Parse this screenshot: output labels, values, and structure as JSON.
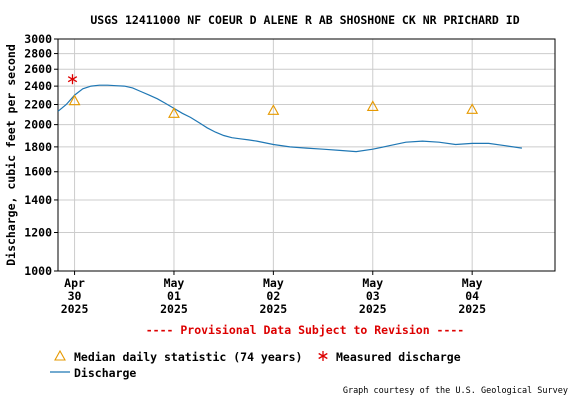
{
  "chart_data": {
    "type": "line",
    "title": "USGS 12411000 NF COEUR D ALENE R AB SHOSHONE CK NR PRICHARD ID",
    "ylabel": "Discharge, cubic feet per second",
    "xlabel": "",
    "y_scale": "log",
    "ylim": [
      1000,
      3000
    ],
    "y_ticks": [
      1000,
      1200,
      1400,
      1600,
      1800,
      2000,
      2200,
      2400,
      2600,
      2800,
      3000
    ],
    "x_range": [
      "2025-04-29T20:00",
      "2025-05-04T20:00"
    ],
    "x_ticks": [
      {
        "x": "2025-04-30T00:00",
        "label": [
          "Apr",
          "30",
          "2025"
        ]
      },
      {
        "x": "2025-05-01T00:00",
        "label": [
          "May",
          "01",
          "2025"
        ]
      },
      {
        "x": "2025-05-02T00:00",
        "label": [
          "May",
          "02",
          "2025"
        ]
      },
      {
        "x": "2025-05-03T00:00",
        "label": [
          "May",
          "03",
          "2025"
        ]
      },
      {
        "x": "2025-05-04T00:00",
        "label": [
          "May",
          "04",
          "2025"
        ]
      }
    ],
    "grid": true,
    "provisional_notice": "---- Provisional Data Subject to Revision ----",
    "credit": "Graph courtesy of the U.S. Geological Survey",
    "colors": {
      "discharge": "#1f77b4",
      "median": "#e69900",
      "measured": "#dd0000",
      "notice": "#dd0000",
      "grid": "#cccccc"
    },
    "series": [
      {
        "name": "Discharge",
        "style": "line",
        "x": [
          "2025-04-29T20:00",
          "2025-04-29T22:00",
          "2025-04-30T00:00",
          "2025-04-30T02:00",
          "2025-04-30T04:00",
          "2025-04-30T06:00",
          "2025-04-30T08:00",
          "2025-04-30T10:00",
          "2025-04-30T12:00",
          "2025-04-30T14:00",
          "2025-04-30T16:00",
          "2025-04-30T18:00",
          "2025-04-30T20:00",
          "2025-04-30T22:00",
          "2025-05-01T00:00",
          "2025-05-01T02:00",
          "2025-05-01T04:00",
          "2025-05-01T06:00",
          "2025-05-01T08:00",
          "2025-05-01T10:00",
          "2025-05-01T12:00",
          "2025-05-01T14:00",
          "2025-05-01T16:00",
          "2025-05-01T18:00",
          "2025-05-01T20:00",
          "2025-05-02T00:00",
          "2025-05-02T04:00",
          "2025-05-02T08:00",
          "2025-05-02T12:00",
          "2025-05-02T16:00",
          "2025-05-02T20:00",
          "2025-05-03T00:00",
          "2025-05-03T04:00",
          "2025-05-03T08:00",
          "2025-05-03T12:00",
          "2025-05-03T16:00",
          "2025-05-03T20:00",
          "2025-05-04T00:00",
          "2025-05-04T04:00",
          "2025-05-04T08:00",
          "2025-05-04T12:00"
        ],
        "y": [
          2130,
          2200,
          2300,
          2370,
          2400,
          2410,
          2410,
          2405,
          2400,
          2380,
          2340,
          2300,
          2260,
          2210,
          2160,
          2110,
          2070,
          2020,
          1970,
          1930,
          1900,
          1880,
          1870,
          1860,
          1850,
          1820,
          1800,
          1790,
          1780,
          1770,
          1760,
          1780,
          1810,
          1840,
          1850,
          1840,
          1820,
          1830,
          1830,
          1810,
          1790
        ]
      },
      {
        "name": "Median daily statistic (74 years)",
        "style": "triangle",
        "x": [
          "2025-04-30T00:00",
          "2025-05-01T00:00",
          "2025-05-02T00:00",
          "2025-05-03T00:00",
          "2025-05-04T00:00"
        ],
        "y": [
          2240,
          2110,
          2140,
          2180,
          2150
        ]
      },
      {
        "name": "Measured discharge",
        "style": "star",
        "x": [
          "2025-04-29T23:30"
        ],
        "y": [
          2480
        ]
      }
    ],
    "legend": {
      "position": "bottom-left",
      "entries": [
        "Median daily statistic (74 years)",
        "Measured discharge",
        "Discharge"
      ]
    }
  }
}
